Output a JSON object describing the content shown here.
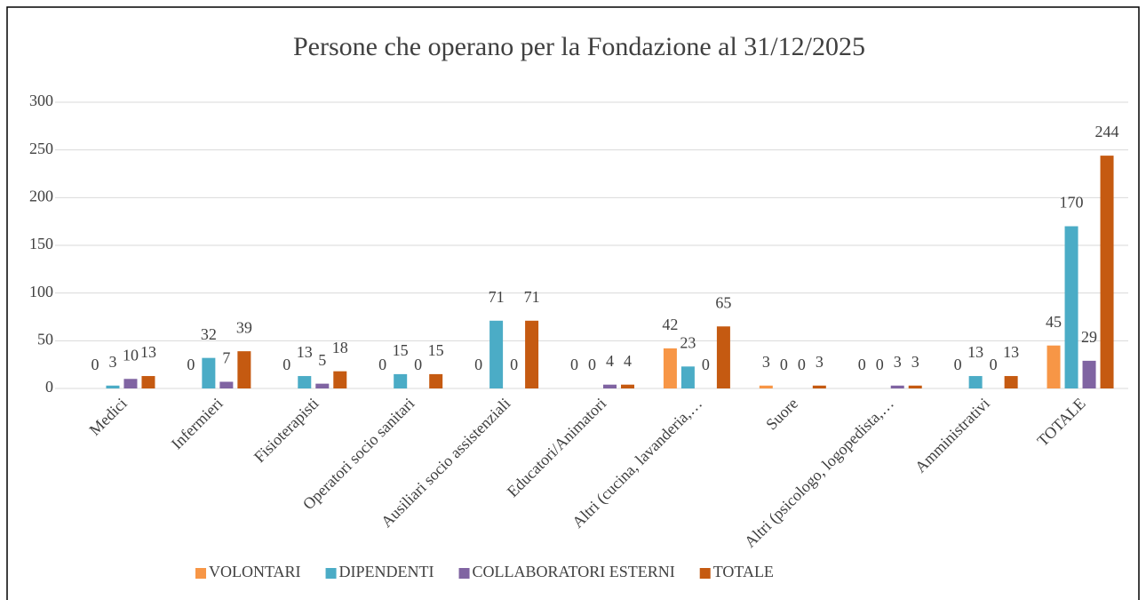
{
  "chart_data": {
    "type": "bar",
    "title": "Persone che operano per la Fondazione al 31/12/2025",
    "categories": [
      "Medici",
      "Infermieri",
      "Fisioterapisti",
      "Operatori socio sanitari",
      "Ausiliari socio assistenziali",
      "Educatori/Animatori",
      "Altri (cucina, lavanderia,…",
      "Suore",
      "Altri (psicologo, logopedista,…",
      "Amministrativi",
      "TOTALE"
    ],
    "series": [
      {
        "name": "VOLONTARI",
        "color": "#f79646",
        "values": [
          0,
          0,
          0,
          0,
          0,
          0,
          42,
          3,
          0,
          0,
          45
        ]
      },
      {
        "name": "DIPENDENTI",
        "color": "#4bacc6",
        "values": [
          3,
          32,
          13,
          15,
          71,
          0,
          23,
          0,
          0,
          13,
          170
        ]
      },
      {
        "name": "COLLABORATORI ESTERNI",
        "color": "#8064a2",
        "values": [
          10,
          7,
          5,
          0,
          0,
          4,
          0,
          0,
          3,
          0,
          29
        ]
      },
      {
        "name": "TOTALE",
        "color": "#c55a11",
        "values": [
          13,
          39,
          18,
          15,
          71,
          4,
          65,
          3,
          3,
          13,
          244
        ]
      }
    ],
    "ylim": [
      0,
      300
    ],
    "yticks": [
      0,
      50,
      100,
      150,
      200,
      250,
      300
    ],
    "grid": true,
    "legend": "bottom"
  }
}
